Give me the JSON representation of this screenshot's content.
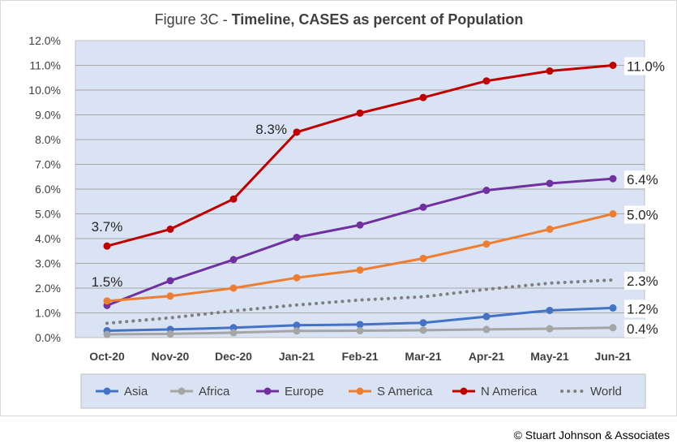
{
  "chart_data": {
    "type": "line",
    "title_prefix": "Figure 3C - ",
    "title_main": "Timeline, CASES as percent of Population",
    "categories": [
      "Oct-20",
      "Nov-20",
      "Dec-20",
      "Jan-21",
      "Feb-21",
      "Mar-21",
      "Apr-21",
      "May-21",
      "Jun-21"
    ],
    "y_ticks": [
      "0.0%",
      "1.0%",
      "2.0%",
      "3.0%",
      "4.0%",
      "5.0%",
      "6.0%",
      "7.0%",
      "8.0%",
      "9.0%",
      "10.0%",
      "11.0%",
      "12.0%"
    ],
    "ylim": [
      0,
      12
    ],
    "grid": true,
    "legend_position": "bottom",
    "series": [
      {
        "name": "Asia",
        "color": "#4472C4",
        "dashed": false,
        "values": [
          0.28,
          0.33,
          0.4,
          0.5,
          0.53,
          0.6,
          0.85,
          1.1,
          1.2
        ]
      },
      {
        "name": "Africa",
        "color": "#A5A5A5",
        "dashed": false,
        "values": [
          0.13,
          0.15,
          0.2,
          0.27,
          0.28,
          0.3,
          0.33,
          0.36,
          0.4
        ]
      },
      {
        "name": "Europe",
        "color": "#7030A0",
        "dashed": false,
        "values": [
          1.3,
          2.3,
          3.15,
          4.05,
          4.55,
          5.27,
          5.95,
          6.23,
          6.42
        ]
      },
      {
        "name": "S America",
        "color": "#ED7D31",
        "dashed": false,
        "values": [
          1.48,
          1.68,
          2.0,
          2.42,
          2.73,
          3.2,
          3.78,
          4.38,
          5.0
        ]
      },
      {
        "name": "N America",
        "color": "#C00000",
        "dashed": false,
        "values": [
          3.7,
          4.38,
          5.6,
          8.3,
          9.07,
          9.7,
          10.37,
          10.77,
          11.0
        ]
      },
      {
        "name": "World",
        "color": "#7F7F7F",
        "dashed": true,
        "values": [
          0.58,
          0.8,
          1.08,
          1.32,
          1.52,
          1.65,
          1.95,
          2.2,
          2.33
        ]
      }
    ],
    "annotations": [
      {
        "text": "3.7%",
        "series": 4,
        "index": 0,
        "anchor": "above"
      },
      {
        "text": "1.5%",
        "series": 3,
        "index": 0,
        "anchor": "above"
      },
      {
        "text": "8.3%",
        "series": 4,
        "index": 3,
        "anchor": "left"
      },
      {
        "text": "11.0%",
        "series": 4,
        "index": 8,
        "anchor": "right"
      },
      {
        "text": "6.4%",
        "series": 2,
        "index": 8,
        "anchor": "right"
      },
      {
        "text": "5.0%",
        "series": 3,
        "index": 8,
        "anchor": "right"
      },
      {
        "text": "2.3%",
        "series": 5,
        "index": 8,
        "anchor": "right"
      },
      {
        "text": "1.2%",
        "series": 0,
        "index": 8,
        "anchor": "right"
      },
      {
        "text": "0.4%",
        "series": 1,
        "index": 8,
        "anchor": "right"
      }
    ]
  },
  "footer": {
    "copyright": "© Stuart Johnson & Associates"
  }
}
